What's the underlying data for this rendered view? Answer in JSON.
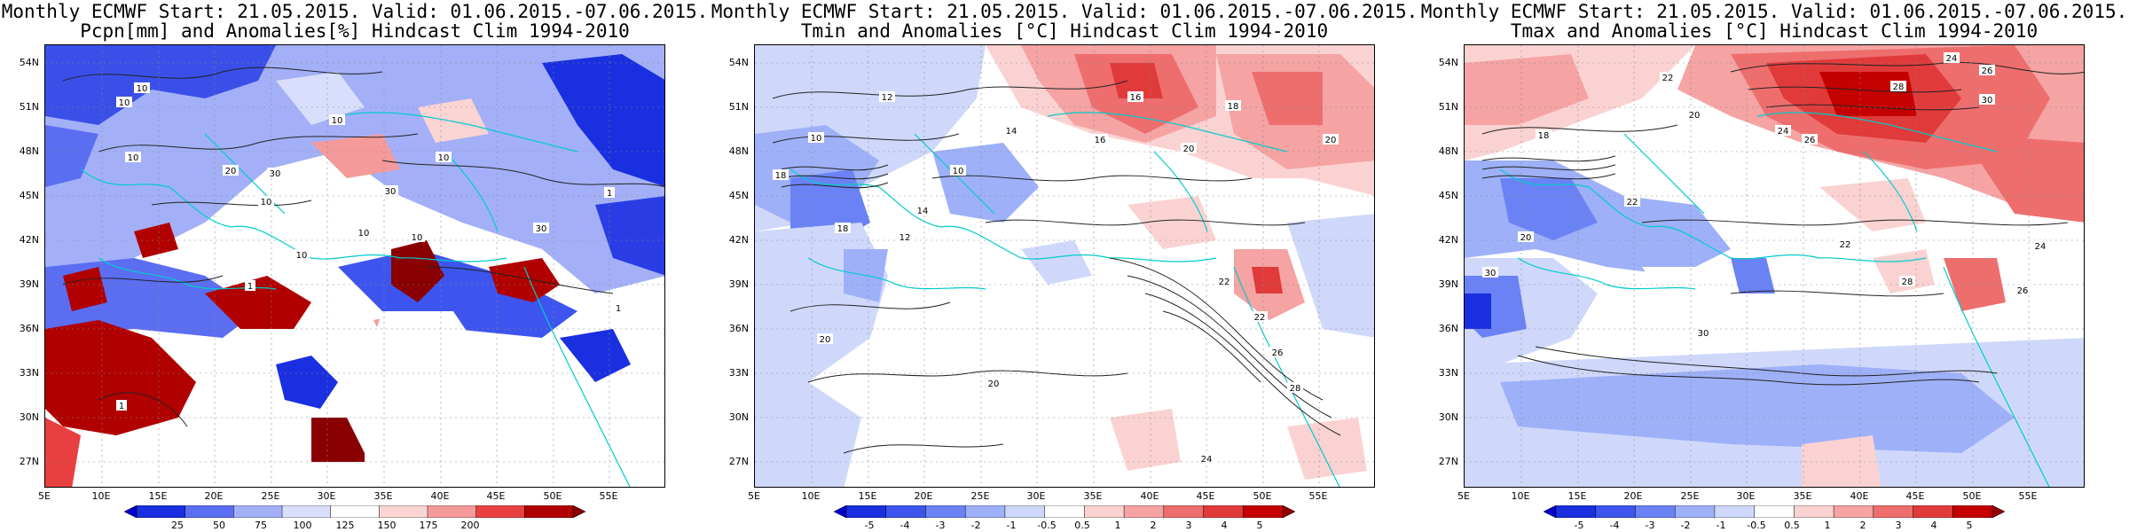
{
  "panels": [
    {
      "title_line1": "Monthly ECMWF Start: 21.05.2015. Valid: 01.06.2015.-07.06.2015.",
      "title_line2": "Pcpn[mm] and Anomalies[%] Hindcast Clim 1994-2010",
      "colorbar": {
        "ticks": [
          "25",
          "50",
          "75",
          "100",
          "125",
          "150",
          "175",
          "200"
        ],
        "colors": [
          "#0000cc",
          "#1a2fe0",
          "#5b6ef2",
          "#a3b0f7",
          "#d8defb",
          "#ffffff",
          "#fbd4d4",
          "#f59a9a",
          "#e84040",
          "#b00000",
          "#8a0000"
        ]
      },
      "contour_labels": [
        "10",
        "10",
        "10",
        "10",
        "10",
        "10",
        "20",
        "30",
        "30",
        "30",
        "10",
        "10",
        "1",
        "1",
        "1",
        "10",
        "1"
      ]
    },
    {
      "title_line1": "Monthly ECMWF Start: 21.05.2015. Valid: 01.06.2015.-07.06.2015.",
      "title_line2": "Tmin and Anomalies [°C] Hindcast Clim 1994-2010",
      "colorbar": {
        "ticks": [
          "-5",
          "-4",
          "-3",
          "-2",
          "-1",
          "-0.5",
          "0.5",
          "1",
          "2",
          "3",
          "4",
          "5"
        ],
        "colors": [
          "#0000cc",
          "#1a2fe0",
          "#3d55ee",
          "#6a82f4",
          "#9eb0f8",
          "#cfd8fb",
          "#ffffff",
          "#fbd2d2",
          "#f5a3a3",
          "#ee6e6e",
          "#e03a3a",
          "#c40000",
          "#900000"
        ]
      },
      "contour_labels": [
        "12",
        "10",
        "16",
        "18",
        "20",
        "14",
        "16",
        "20",
        "10",
        "14",
        "12",
        "18",
        "18",
        "20",
        "20",
        "22",
        "24",
        "26",
        "28",
        "22"
      ]
    },
    {
      "title_line1": "Monthly ECMWF Start: 21.05.2015. Valid: 01.06.2015.-07.06.2015.",
      "title_line2": "Tmax and Anomalies [°C] Hindcast Clim 1994-2010",
      "colorbar": {
        "ticks": [
          "-5",
          "-4",
          "-3",
          "-2",
          "-1",
          "-0.5",
          "0.5",
          "1",
          "2",
          "3",
          "4",
          "5"
        ],
        "colors": [
          "#0000cc",
          "#1a2fe0",
          "#3d55ee",
          "#6a82f4",
          "#9eb0f8",
          "#cfd8fb",
          "#ffffff",
          "#fbd2d2",
          "#f5a3a3",
          "#ee6e6e",
          "#e03a3a",
          "#c40000",
          "#900000"
        ]
      },
      "contour_labels": [
        "24",
        "26",
        "28",
        "30",
        "22",
        "20",
        "18",
        "24",
        "26",
        "22",
        "20",
        "30",
        "30",
        "22",
        "28",
        "26",
        "24"
      ]
    }
  ],
  "axes": {
    "lat_labels": [
      "54N",
      "51N",
      "48N",
      "45N",
      "42N",
      "39N",
      "36N",
      "33N",
      "30N",
      "27N"
    ],
    "lon_labels": [
      "5E",
      "10E",
      "15E",
      "20E",
      "25E",
      "30E",
      "35E",
      "40E",
      "45E",
      "50E",
      "55E"
    ]
  }
}
